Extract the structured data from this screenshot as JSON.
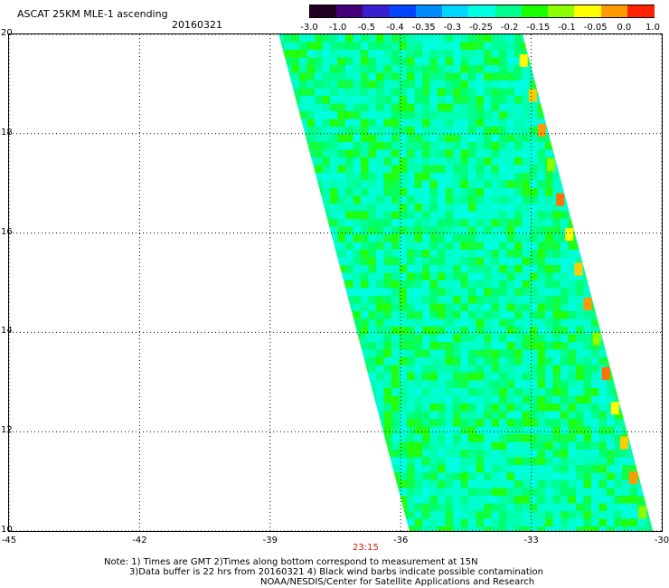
{
  "header": {
    "title": "ASCAT 25KM MLE-1 ascending",
    "date": "20160321"
  },
  "colorbar": {
    "labels": [
      "-3.0",
      "-1.0",
      "-0.5",
      "-0.4",
      "-0.35",
      "-0.3",
      "-0.25",
      "-0.2",
      "-0.15",
      "-0.1",
      "-0.05",
      "0.0",
      "1.0"
    ],
    "colors": [
      "#220022",
      "#44007a",
      "#3a1fd0",
      "#0045ff",
      "#008cff",
      "#00d7ff",
      "#00ffe2",
      "#00ff8c",
      "#1aff00",
      "#8cff00",
      "#ffff00",
      "#ff9a00",
      "#ff2200"
    ]
  },
  "map": {
    "lat_labels": [
      "20",
      "18",
      "16",
      "14",
      "12",
      "10"
    ],
    "lon_labels": [
      "-45",
      "-42",
      "-39",
      "-36",
      "-33",
      "-30"
    ],
    "lat_range": [
      10,
      20
    ],
    "lon_range": [
      -45,
      -30
    ],
    "swath_corners_lonlat": [
      [
        -38.8,
        20
      ],
      [
        -33.2,
        20
      ],
      [
        -30.2,
        10
      ],
      [
        -35.8,
        10
      ]
    ],
    "time_label": "23:15"
  },
  "notes": {
    "line1": "Note: 1) Times are GMT 2)Times along bottom correspond to measurement at 15N",
    "line2": "3)Data buffer is 22 hrs from 20160321 4) Black wind barbs indicate possible contamination",
    "line3": "NOAA/NESDIS/Center for Satellite Applications and Research"
  }
}
